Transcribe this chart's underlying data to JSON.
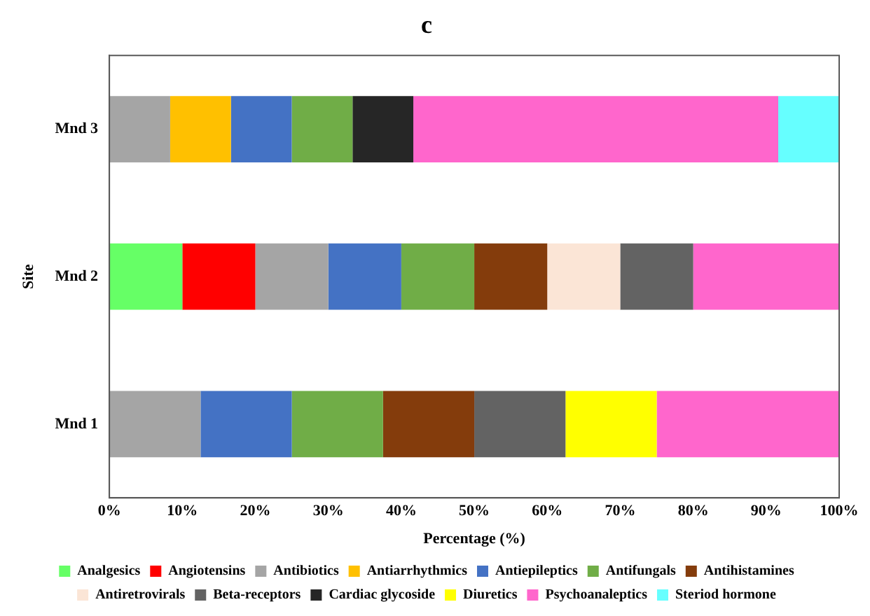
{
  "chart_data": {
    "type": "bar",
    "orientation": "horizontal",
    "stacked": true,
    "title": "c",
    "xlabel": "Percentage (%)",
    "ylabel": "Site",
    "categories": [
      "Mnd 3",
      "Mnd 2",
      "Mnd 1"
    ],
    "xlim": [
      0,
      100
    ],
    "xticks": [
      {
        "value": 0,
        "label": "0%"
      },
      {
        "value": 10,
        "label": "10%"
      },
      {
        "value": 20,
        "label": "20%"
      },
      {
        "value": 30,
        "label": "30%"
      },
      {
        "value": 40,
        "label": "40%"
      },
      {
        "value": 50,
        "label": "50%"
      },
      {
        "value": 60,
        "label": "60%"
      },
      {
        "value": 70,
        "label": "70%"
      },
      {
        "value": 80,
        "label": "80%"
      },
      {
        "value": 90,
        "label": "90%"
      },
      {
        "value": 100,
        "label": "100%"
      }
    ],
    "grid": false,
    "legend": "bottom",
    "series": [
      {
        "name": "Analgesics",
        "color": "#66ff66",
        "values": [
          null,
          10,
          null
        ]
      },
      {
        "name": "Angiotensins",
        "color": "#ff0000",
        "values": [
          null,
          10,
          null
        ]
      },
      {
        "name": "Antibiotics",
        "color": "#a5a5a5",
        "values": [
          8.33,
          10,
          12.5
        ]
      },
      {
        "name": "Antiarrhythmics",
        "color": "#ffc000",
        "values": [
          8.33,
          null,
          null
        ]
      },
      {
        "name": "Antiepileptics",
        "color": "#4472c4",
        "values": [
          8.33,
          10,
          12.5
        ]
      },
      {
        "name": "Antifungals",
        "color": "#70ad47",
        "values": [
          8.33,
          10,
          12.5
        ]
      },
      {
        "name": "Antihistamines",
        "color": "#843c0c",
        "values": [
          null,
          10,
          12.5
        ]
      },
      {
        "name": "Antiretrovirals",
        "color": "#fbe5d6",
        "values": [
          null,
          10,
          null
        ]
      },
      {
        "name": "Beta-receptors",
        "color": "#636363",
        "values": [
          null,
          10,
          12.5
        ]
      },
      {
        "name": "Cardiac glycoside",
        "color": "#262626",
        "values": [
          8.33,
          null,
          null
        ]
      },
      {
        "name": "Diuretics",
        "color": "#ffff00",
        "values": [
          null,
          null,
          12.5
        ]
      },
      {
        "name": "Psychoanaleptics",
        "color": "#ff66cc",
        "values": [
          50,
          20,
          25
        ]
      },
      {
        "name": "Steriod hormone",
        "color": "#66ffff",
        "values": [
          8.33,
          null,
          null
        ]
      }
    ]
  }
}
